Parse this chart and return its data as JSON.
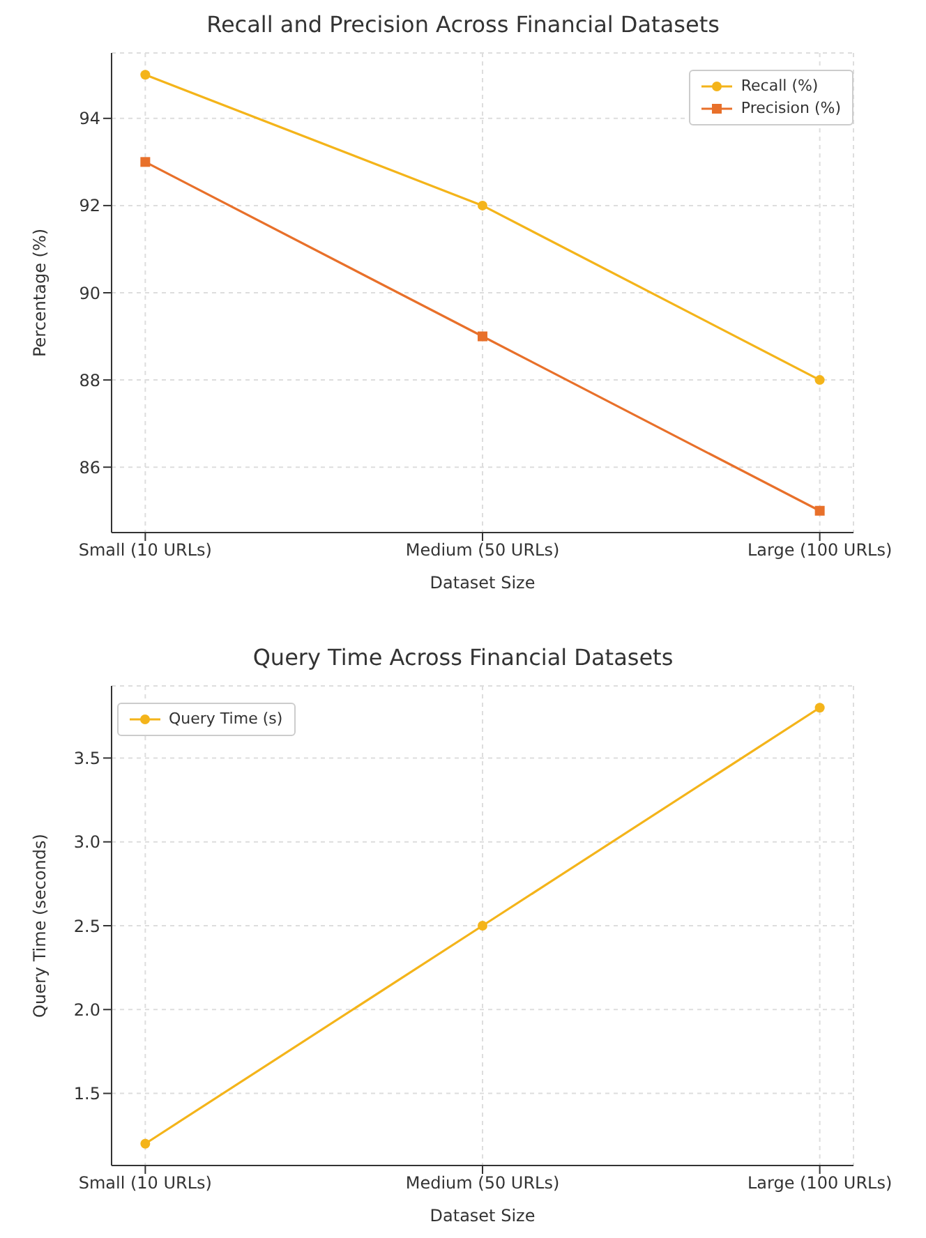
{
  "chart_data": [
    {
      "type": "line",
      "title": "Recall and Precision Across Financial Datasets",
      "xlabel": "Dataset Size",
      "ylabel": "Percentage (%)",
      "categories": [
        "Small (10 URLs)",
        "Medium (50 URLs)",
        "Large (100 URLs)"
      ],
      "series": [
        {
          "name": "Recall (%)",
          "color": "#f4b41a",
          "values": [
            95,
            92,
            88
          ],
          "marker": "circle"
        },
        {
          "name": "Precision (%)",
          "color": "#e8702a",
          "values": [
            93,
            89,
            85
          ],
          "marker": "square"
        }
      ],
      "ylim": [
        84.5,
        95.5
      ],
      "yticks": [
        86,
        88,
        90,
        92,
        94
      ],
      "grid": true,
      "legend": "top right",
      "line_style": "solid"
    },
    {
      "type": "line",
      "title": "Query Time Across Financial Datasets",
      "xlabel": "Dataset Size",
      "ylabel": "Query Time (seconds)",
      "categories": [
        "Small (10 URLs)",
        "Medium (50 URLs)",
        "Large (100 URLs)"
      ],
      "series": [
        {
          "name": "Query Time (s)",
          "color": "#f4b41a",
          "values": [
            1.2,
            2.5,
            3.8
          ],
          "marker": "circle"
        }
      ],
      "ylim": [
        1.07,
        3.93
      ],
      "yticks": [
        1.5,
        {
          "value": 2,
          "label": "2.0"
        },
        2.5,
        {
          "value": 3,
          "label": "3.0"
        },
        3.5
      ],
      "grid": true,
      "legend": "top left",
      "line_style": "solid"
    }
  ]
}
